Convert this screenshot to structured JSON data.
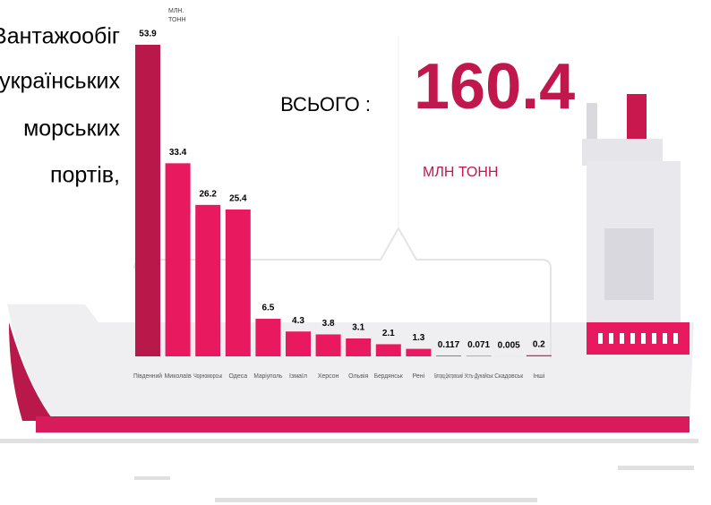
{
  "chart_data": {
    "type": "bar",
    "title_lines": [
      "Вантажообіг",
      "українських",
      "морських",
      "портів,"
    ],
    "unit_lines": [
      "МЛН.",
      "ТОНН"
    ],
    "total_label": "ВСЬОГО :",
    "total": 160.4,
    "total_unit": "МЛН ТОНН",
    "categories": [
      "Південний",
      "Миколаїв",
      "Чорноморськ",
      "Одеса",
      "Маріуполь",
      "Ізмаїл",
      "Херсон",
      "Ольвія",
      "Бердянськ",
      "Рені",
      "Білгород-Дністровський",
      "Усть-Дунайськ",
      "Скадовськ",
      "Інші"
    ],
    "values": [
      53.9,
      33.4,
      26.2,
      25.4,
      6.5,
      4.3,
      3.8,
      3.1,
      2.1,
      1.3,
      0.117,
      0.071,
      0.005,
      0.2
    ],
    "colors": [
      "#b8184a",
      "#e8195e",
      "#e8195e",
      "#e8195e",
      "#e8195e",
      "#e8195e",
      "#e8195e",
      "#e8195e",
      "#e8195e",
      "#e8195e",
      "#e8195e",
      "#e8195e",
      "#e8195e",
      "#e8195e"
    ]
  }
}
